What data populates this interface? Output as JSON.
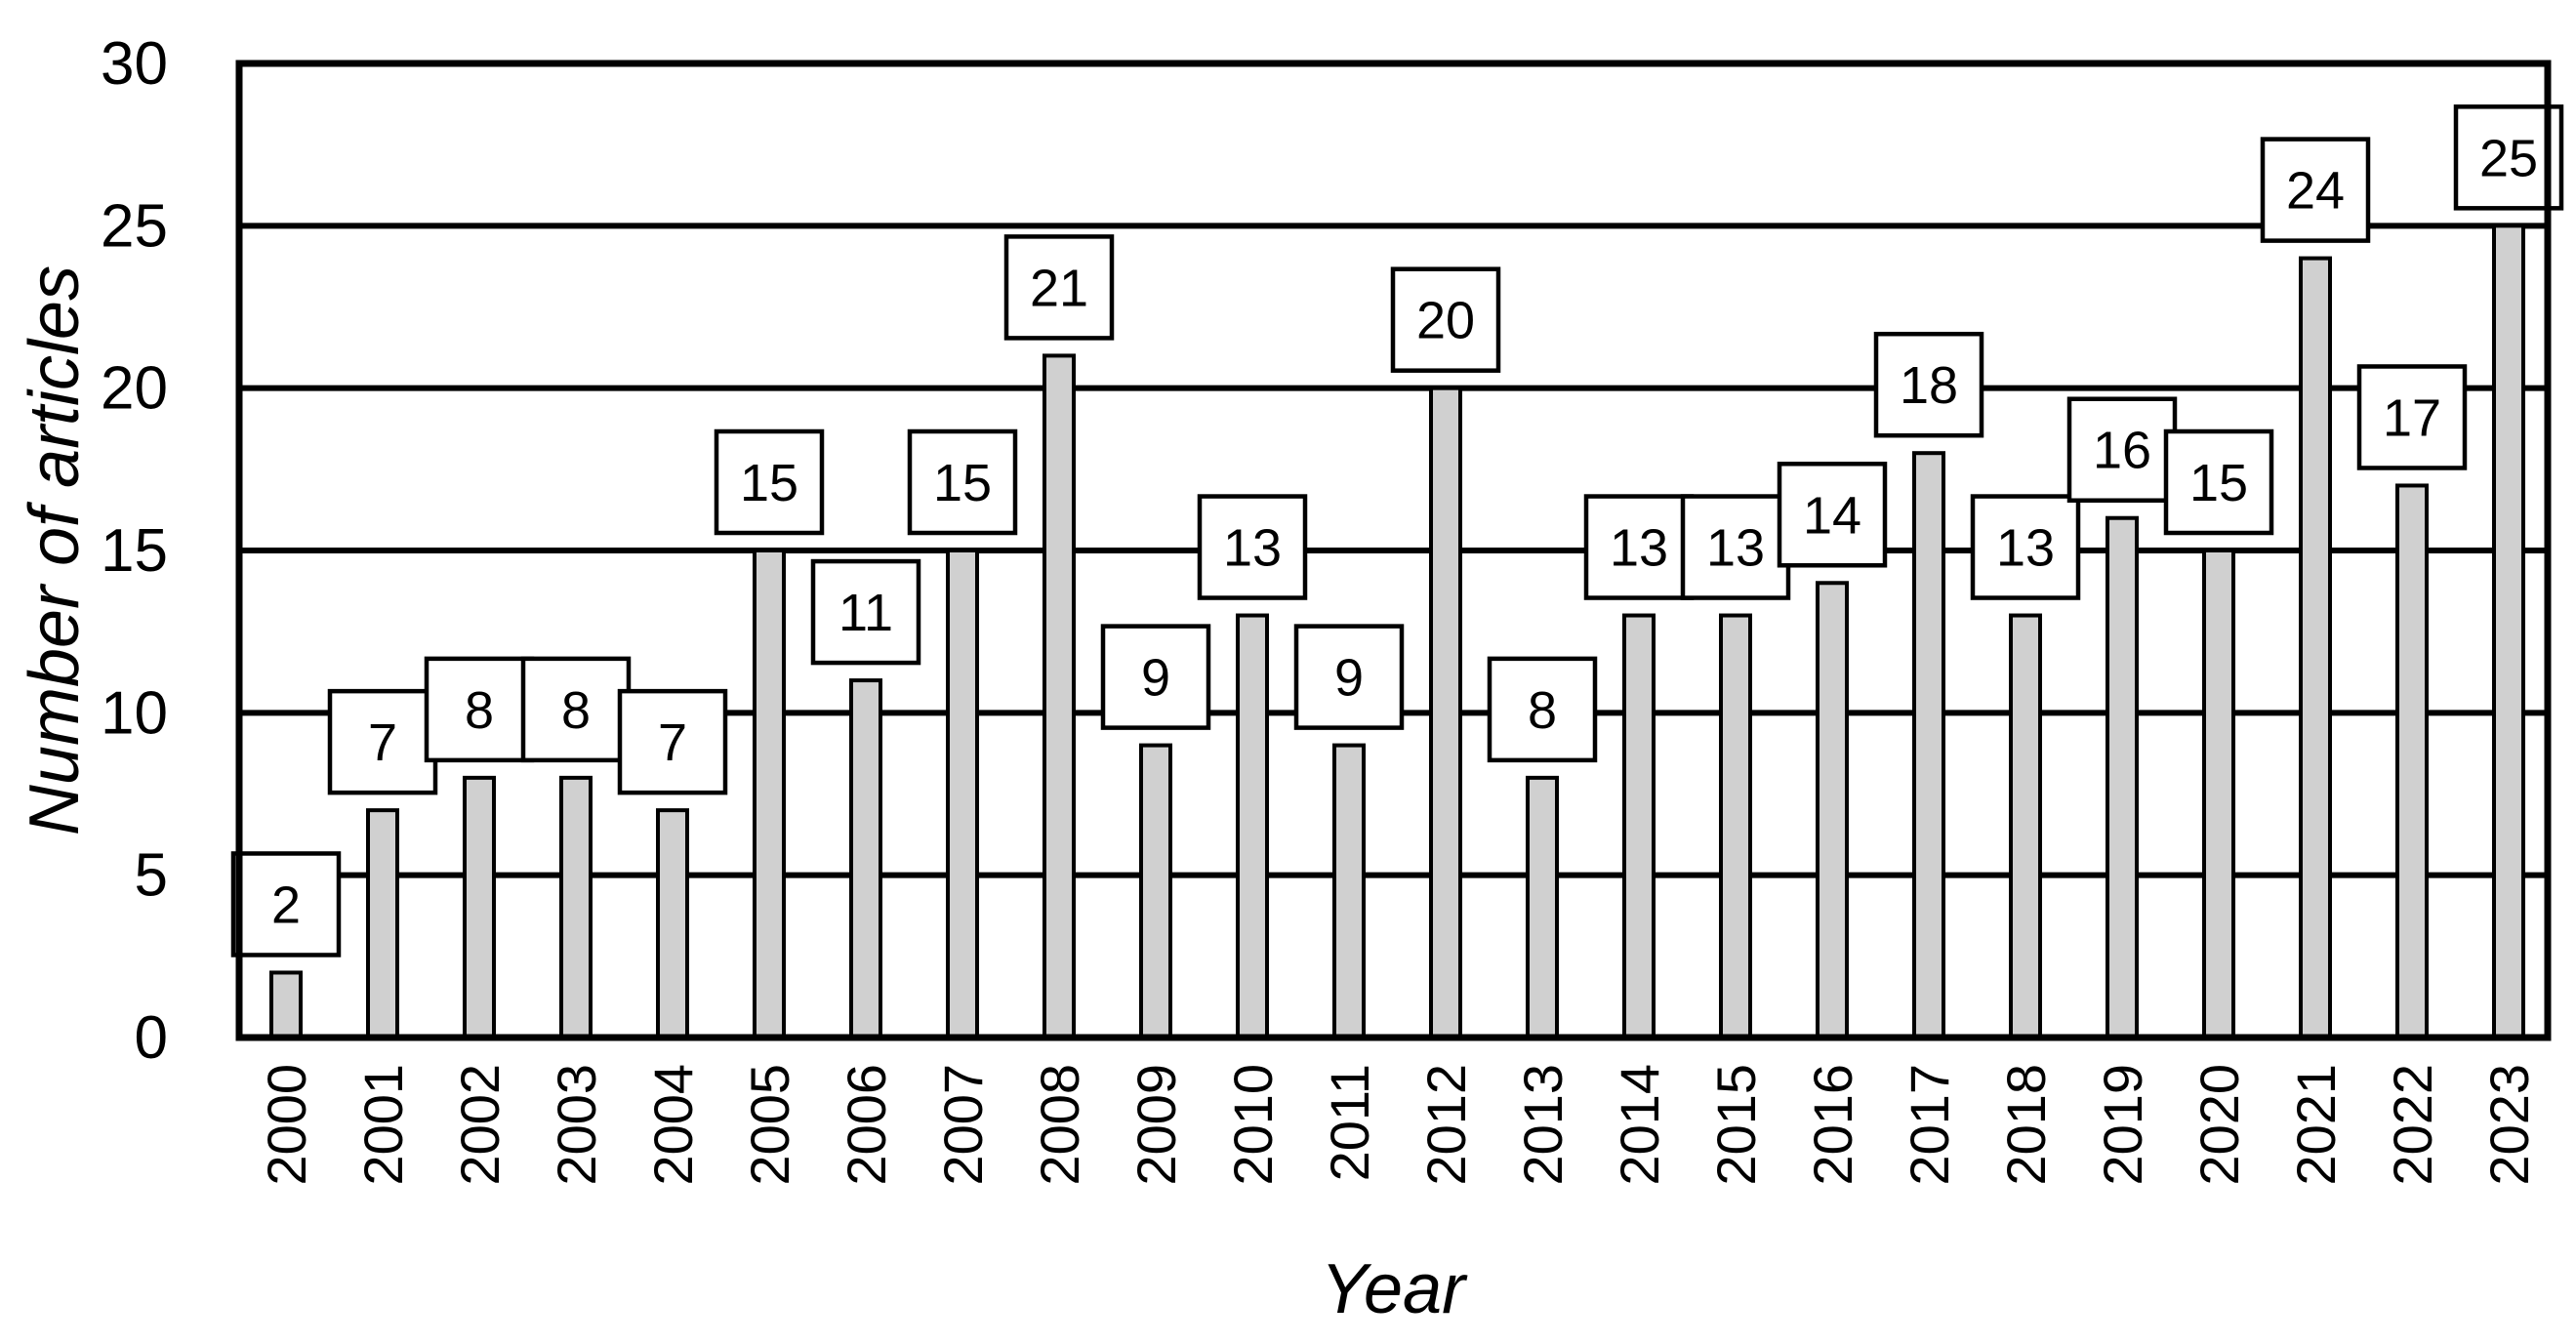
{
  "chart_data": {
    "type": "bar",
    "xlabel": "Year",
    "ylabel": "Number of articles",
    "ylim": [
      0,
      30
    ],
    "yticks": [
      0,
      5,
      10,
      15,
      20,
      25,
      30
    ],
    "grid": true,
    "data_labels": true,
    "colors": {
      "bar": "#d0d0d0",
      "outline": "#000000",
      "label_text": "#333333"
    },
    "categories": [
      "2000",
      "2001",
      "2002",
      "2003",
      "2004",
      "2005",
      "2006",
      "2007",
      "2008",
      "2009",
      "2010",
      "2011",
      "2012",
      "2013",
      "2014",
      "2015",
      "2016",
      "2017",
      "2018",
      "2019",
      "2020",
      "2021",
      "2022",
      "2023"
    ],
    "values": [
      2,
      7,
      8,
      8,
      7,
      15,
      11,
      15,
      21,
      9,
      13,
      9,
      20,
      8,
      13,
      13,
      14,
      18,
      13,
      16,
      15,
      24,
      17,
      25
    ]
  }
}
